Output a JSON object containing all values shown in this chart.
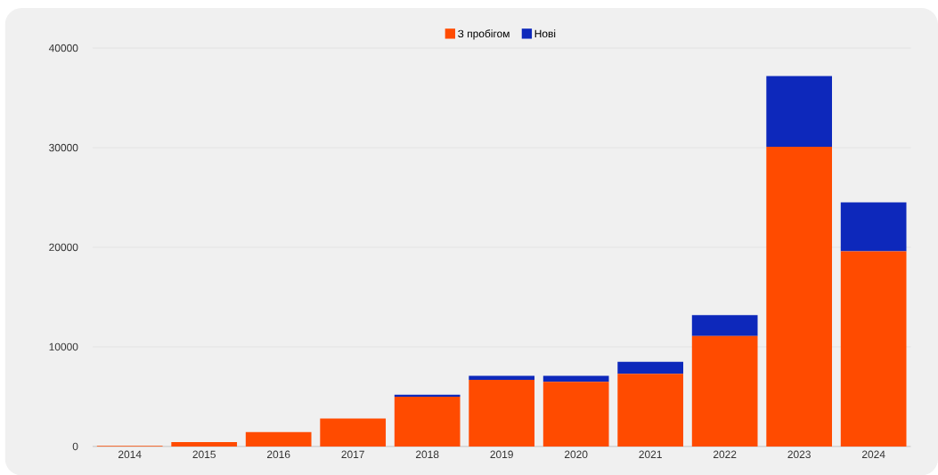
{
  "chart_data": {
    "type": "bar",
    "stacked": true,
    "categories": [
      "2014",
      "2015",
      "2016",
      "2017",
      "2018",
      "2019",
      "2020",
      "2021",
      "2022",
      "2023",
      "2024"
    ],
    "series": [
      {
        "name": "З пробігом",
        "color": "#ff4b00",
        "values": [
          50,
          450,
          1450,
          2800,
          5000,
          6700,
          6500,
          7300,
          11100,
          30100,
          19600
        ]
      },
      {
        "name": "Нові",
        "color": "#0d28bb",
        "values": [
          0,
          0,
          0,
          0,
          200,
          400,
          600,
          1200,
          2100,
          7100,
          4900
        ]
      }
    ],
    "ylim": [
      0,
      40000
    ],
    "yticks": [
      0,
      10000,
      20000,
      30000,
      40000
    ],
    "grid": "y",
    "legend": "top"
  }
}
